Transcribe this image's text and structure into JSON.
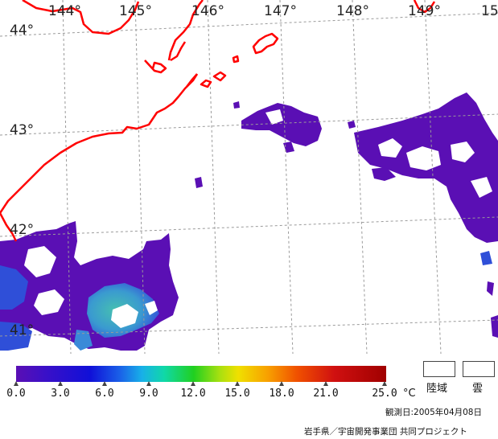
{
  "map": {
    "longitude_labels": [
      "144°",
      "145°",
      "146°",
      "147°",
      "148°",
      "149°",
      "15"
    ],
    "latitude_labels": [
      "44°",
      "43°",
      "42°",
      "41°"
    ],
    "colors": {
      "coastline": "#ff0000",
      "grid": "#999999",
      "sst_purple": "#5a0fb4",
      "sst_blue": "#2f4fd8",
      "sst_teal": "#3fb8b8"
    }
  },
  "colorbar": {
    "min": 0.0,
    "max": 25.0,
    "tick_labels": [
      "0.0",
      "3.0",
      "6.0",
      "9.0",
      "12.0",
      "15.0",
      "18.0",
      "21.0",
      "25.0"
    ],
    "unit": "°C"
  },
  "legend": {
    "land_label": "陸域",
    "cloud_label": "雲"
  },
  "footer": {
    "observation_date": "観測日:2005年04月08日",
    "credit": "岩手県／宇宙開発事業団 共同プロジェクト"
  }
}
